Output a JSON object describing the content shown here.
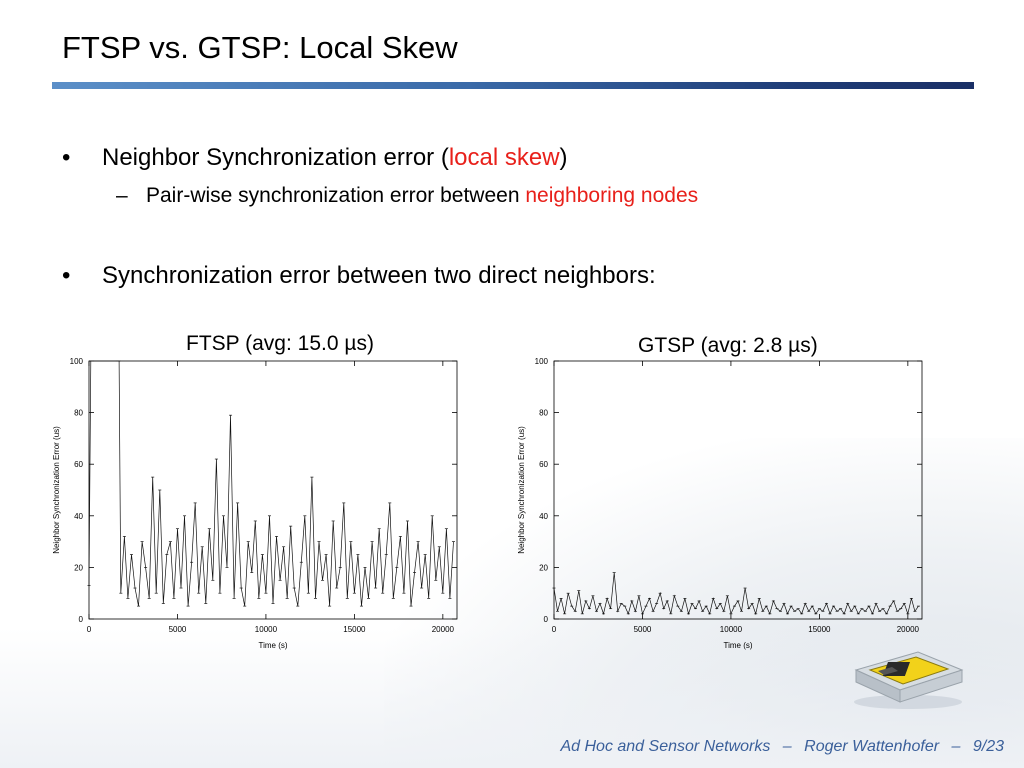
{
  "slide": {
    "title": "FTSP vs. GTSP: Local Skew",
    "bullets": [
      {
        "marker": "•",
        "parts": [
          "Neighbor Synchronization error (",
          "local skew",
          ")"
        ]
      },
      {
        "marker": "–",
        "parts": [
          "Pair-wise synchronization error between ",
          "neighboring nodes"
        ]
      },
      {
        "marker": "•",
        "text": "Synchronization error between two direct neighbors:"
      }
    ],
    "accent_color": "#e8201a",
    "bar_color": "#1f3d78"
  },
  "footer": {
    "course": "Ad Hoc and Sensor Networks",
    "sep1": "–",
    "author": "Roger Wattenhofer",
    "sep2": "–",
    "page": "9/23"
  },
  "chart_data": [
    {
      "type": "line",
      "title": "FTSP (avg: 15.0 µs)",
      "xlabel": "Time (s)",
      "ylabel": "Neighbor Synchronization Error (us)",
      "xlim": [
        0,
        20800
      ],
      "ylim": [
        0,
        100
      ],
      "xticks": [
        0,
        5000,
        10000,
        15000,
        20000
      ],
      "yticks": [
        0,
        20,
        40,
        60,
        80,
        100
      ],
      "grid": false,
      "x": [
        0,
        100,
        150,
        1600,
        1700,
        1800,
        2000,
        2200,
        2400,
        2600,
        2800,
        3000,
        3200,
        3400,
        3600,
        3800,
        4000,
        4200,
        4400,
        4600,
        4800,
        5000,
        5200,
        5400,
        5600,
        5800,
        6000,
        6200,
        6400,
        6600,
        6800,
        7000,
        7200,
        7400,
        7600,
        7800,
        8000,
        8200,
        8400,
        8600,
        8800,
        9000,
        9200,
        9400,
        9600,
        9800,
        10000,
        10200,
        10400,
        10600,
        10800,
        11000,
        11200,
        11400,
        11600,
        11800,
        12000,
        12200,
        12400,
        12600,
        12800,
        13000,
        13200,
        13400,
        13600,
        13800,
        14000,
        14200,
        14400,
        14600,
        14800,
        15000,
        15200,
        15400,
        15600,
        15800,
        16000,
        16200,
        16400,
        16600,
        16800,
        17000,
        17200,
        17400,
        17600,
        17800,
        18000,
        18200,
        18400,
        18600,
        18800,
        19000,
        19200,
        19400,
        19600,
        19800,
        20000,
        20200,
        20400,
        20600
      ],
      "y": [
        13,
        100,
        100,
        100,
        100,
        10,
        32,
        8,
        25,
        12,
        5,
        30,
        20,
        8,
        55,
        10,
        50,
        6,
        25,
        30,
        8,
        35,
        12,
        40,
        5,
        22,
        45,
        10,
        28,
        6,
        35,
        15,
        62,
        10,
        40,
        20,
        79,
        8,
        45,
        12,
        5,
        30,
        18,
        38,
        8,
        25,
        10,
        40,
        6,
        32,
        15,
        28,
        8,
        36,
        12,
        5,
        22,
        40,
        10,
        55,
        8,
        30,
        15,
        25,
        5,
        38,
        12,
        20,
        45,
        8,
        30,
        10,
        25,
        5,
        20,
        8,
        30,
        12,
        35,
        10,
        25,
        45,
        8,
        20,
        32,
        10,
        38,
        5,
        18,
        30,
        12,
        25,
        8,
        40,
        15,
        28,
        10,
        35,
        8,
        30
      ]
    },
    {
      "type": "line",
      "title": "GTSP (avg: 2.8 µs)",
      "xlabel": "Time (s)",
      "ylabel": "Neighbor Synchronization Error (us)",
      "xlim": [
        0,
        20800
      ],
      "ylim": [
        0,
        100
      ],
      "xticks": [
        0,
        5000,
        10000,
        15000,
        20000
      ],
      "yticks": [
        0,
        20,
        40,
        60,
        80,
        100
      ],
      "grid": false,
      "x": [
        0,
        200,
        400,
        600,
        800,
        1000,
        1200,
        1400,
        1600,
        1800,
        2000,
        2200,
        2400,
        2600,
        2800,
        3000,
        3200,
        3400,
        3600,
        3800,
        4000,
        4200,
        4400,
        4600,
        4800,
        5000,
        5200,
        5400,
        5600,
        5800,
        6000,
        6200,
        6400,
        6600,
        6800,
        7000,
        7200,
        7400,
        7600,
        7800,
        8000,
        8200,
        8400,
        8600,
        8800,
        9000,
        9200,
        9400,
        9600,
        9800,
        10000,
        10200,
        10400,
        10600,
        10800,
        11000,
        11200,
        11400,
        11600,
        11800,
        12000,
        12200,
        12400,
        12600,
        12800,
        13000,
        13200,
        13400,
        13600,
        13800,
        14000,
        14200,
        14400,
        14600,
        14800,
        15000,
        15200,
        15400,
        15600,
        15800,
        16000,
        16200,
        16400,
        16600,
        16800,
        17000,
        17200,
        17400,
        17600,
        17800,
        18000,
        18200,
        18400,
        18600,
        18800,
        19000,
        19200,
        19400,
        19600,
        19800,
        20000,
        20200,
        20400,
        20600
      ],
      "y": [
        12,
        3,
        8,
        2,
        10,
        5,
        3,
        11,
        2,
        7,
        4,
        9,
        3,
        6,
        2,
        8,
        4,
        18,
        3,
        6,
        5,
        2,
        7,
        3,
        9,
        2,
        5,
        8,
        3,
        6,
        10,
        4,
        7,
        2,
        9,
        5,
        3,
        8,
        2,
        6,
        4,
        7,
        3,
        5,
        2,
        8,
        4,
        6,
        3,
        9,
        2,
        5,
        7,
        3,
        12,
        4,
        6,
        2,
        8,
        3,
        5,
        2,
        7,
        4,
        3,
        6,
        2,
        5,
        3,
        4,
        2,
        6,
        3,
        5,
        2,
        4,
        3,
        6,
        2,
        5,
        3,
        4,
        2,
        6,
        3,
        5,
        2,
        4,
        3,
        5,
        2,
        6,
        3,
        4,
        2,
        5,
        7,
        3,
        4,
        6,
        2,
        8,
        3,
        5
      ]
    }
  ]
}
